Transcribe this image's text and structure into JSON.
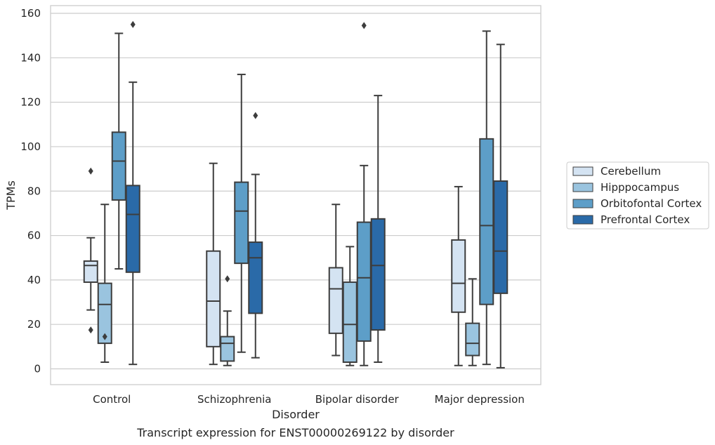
{
  "chart_data": {
    "type": "box",
    "title": "",
    "xlabel": "Disorder",
    "ylabel": "TPMs",
    "caption": "Transcript expression for ENST00000269122 by disorder",
    "categories": [
      "Control",
      "Schizophrenia",
      "Bipolar disorder",
      "Major depression"
    ],
    "y_ticks": [
      0,
      20,
      40,
      60,
      80,
      100,
      120,
      140,
      160
    ],
    "ylim": [
      -7,
      162
    ],
    "grid": "horizontal",
    "legend_position": "right",
    "series": [
      {
        "name": "Cerebellum",
        "color": "#d4e3f2",
        "boxes": [
          {
            "whislo": 26.5,
            "q1": 39,
            "med": 46.5,
            "q3": 48.5,
            "whishi": 59,
            "fliers": [
              89,
              17.5
            ]
          },
          {
            "whislo": 2,
            "q1": 10,
            "med": 30.5,
            "q3": 53,
            "whishi": 92.5,
            "fliers": []
          },
          {
            "whislo": 6,
            "q1": 16,
            "med": 36,
            "q3": 45.5,
            "whishi": 74,
            "fliers": []
          },
          {
            "whislo": 1.5,
            "q1": 25.5,
            "med": 38.5,
            "q3": 58,
            "whishi": 82,
            "fliers": []
          }
        ]
      },
      {
        "name": "Hipppocampus",
        "color": "#9ac4df",
        "boxes": [
          {
            "whislo": 3,
            "q1": 11.5,
            "med": 29,
            "q3": 38.5,
            "whishi": 74,
            "fliers": [
              14.5
            ]
          },
          {
            "whislo": 1.5,
            "q1": 3.5,
            "med": 11.5,
            "q3": 14.5,
            "whishi": 26,
            "fliers": [
              40.5
            ]
          },
          {
            "whislo": 1.5,
            "q1": 3,
            "med": 20,
            "q3": 39,
            "whishi": 55,
            "fliers": []
          },
          {
            "whislo": 1.5,
            "q1": 6,
            "med": 11.5,
            "q3": 20.5,
            "whishi": 40.5,
            "fliers": []
          }
        ]
      },
      {
        "name": "Orbitofontal Cortex",
        "color": "#5d9ec8",
        "boxes": [
          {
            "whislo": 45,
            "q1": 76,
            "med": 93.5,
            "q3": 106.5,
            "whishi": 151,
            "fliers": []
          },
          {
            "whislo": 7.5,
            "q1": 47.5,
            "med": 71,
            "q3": 84,
            "whishi": 132.5,
            "fliers": []
          },
          {
            "whislo": 1.5,
            "q1": 12.5,
            "med": 41,
            "q3": 66,
            "whishi": 91.5,
            "fliers": [
              154.5
            ]
          },
          {
            "whislo": 2,
            "q1": 29,
            "med": 64.5,
            "q3": 103.5,
            "whishi": 152,
            "fliers": []
          }
        ]
      },
      {
        "name": "Prefrontal Cortex",
        "color": "#2a6aa8",
        "boxes": [
          {
            "whislo": 2,
            "q1": 43.5,
            "med": 69.5,
            "q3": 82.5,
            "whishi": 129,
            "fliers": [
              155
            ]
          },
          {
            "whislo": 5,
            "q1": 25,
            "med": 50,
            "q3": 57,
            "whishi": 87.5,
            "fliers": [
              114
            ]
          },
          {
            "whislo": 3,
            "q1": 17.5,
            "med": 46.5,
            "q3": 67.5,
            "whishi": 123,
            "fliers": []
          },
          {
            "whislo": 0.5,
            "q1": 34,
            "med": 53,
            "q3": 84.5,
            "whishi": 146,
            "fliers": []
          }
        ]
      }
    ]
  }
}
